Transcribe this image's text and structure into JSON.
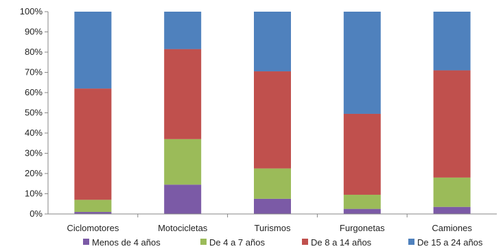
{
  "chart_data": {
    "type": "bar",
    "stacked": true,
    "title": "",
    "xlabel": "",
    "ylabel": "",
    "ylim": [
      0,
      100
    ],
    "y_ticks": [
      "0%",
      "10%",
      "20%",
      "30%",
      "40%",
      "50%",
      "60%",
      "70%",
      "80%",
      "90%",
      "100%"
    ],
    "grid": false,
    "legend_position": "bottom",
    "categories": [
      "Ciclomotores",
      "Motocicletas",
      "Turismos",
      "Furgonetas",
      "Camiones"
    ],
    "series": [
      {
        "name": "Menos de 4 años",
        "color": "#7B5AA6",
        "values": [
          1,
          14.5,
          7.5,
          2.5,
          3.5
        ]
      },
      {
        "name": "De 4 a 7 años",
        "color": "#9BBB59",
        "values": [
          6,
          22.5,
          15,
          7,
          14.5
        ]
      },
      {
        "name": "De 8 a 14 años",
        "color": "#C0504D",
        "values": [
          55,
          44.5,
          48,
          40,
          53
        ]
      },
      {
        "name": "De 15 a 24 años",
        "color": "#4F81BD",
        "values": [
          38,
          18.5,
          29.5,
          50.5,
          29
        ]
      }
    ]
  }
}
